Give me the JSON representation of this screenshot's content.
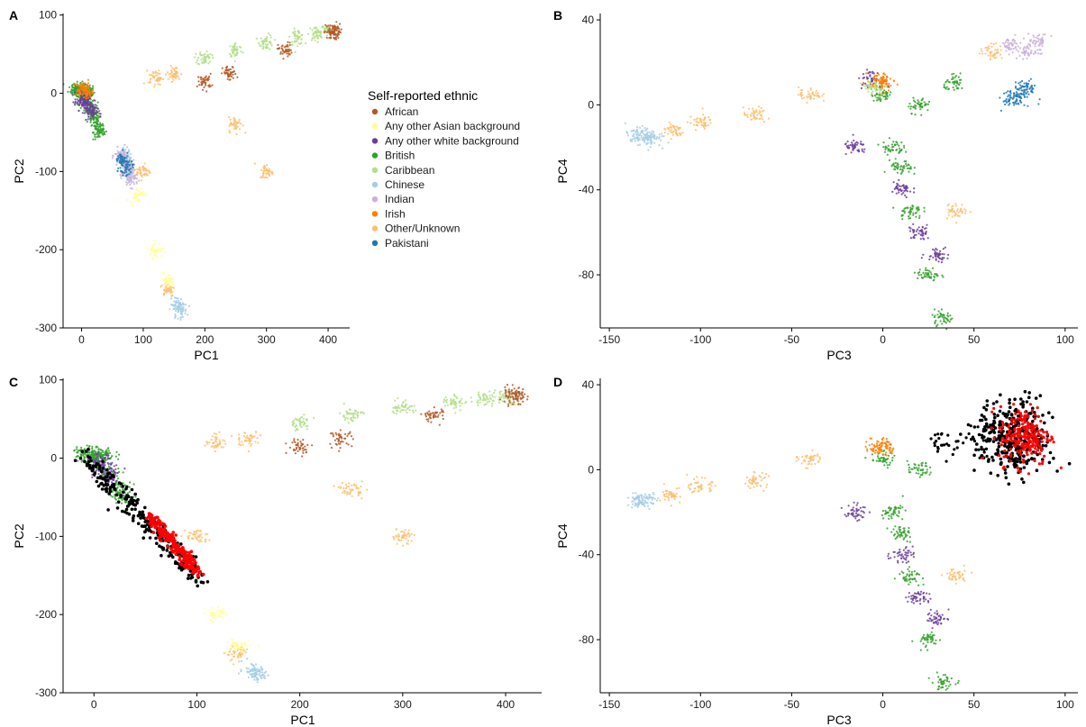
{
  "colors": {
    "African": "#b15928",
    "Any other Asian background": "#ffff99",
    "Any other white background": "#6a3d9a",
    "British": "#33a02c",
    "Caribbean": "#b2df8a",
    "Chinese": "#a6cee3",
    "Indian": "#cab2d6",
    "Irish": "#ff7f00",
    "Other/Unknown": "#fdbf6f",
    "Pakistani": "#1f78b4",
    "highlight_outer": "#000000",
    "highlight_inner": "#ff0000"
  },
  "legend": {
    "title": "Self-reported ethnic",
    "placement": "between panels A and B",
    "items": [
      {
        "label": "African",
        "key": "African"
      },
      {
        "label": "Any other Asian background",
        "key": "Any other Asian background"
      },
      {
        "label": "Any other white background",
        "key": "Any other white background"
      },
      {
        "label": "British",
        "key": "British"
      },
      {
        "label": "Caribbean",
        "key": "Caribbean"
      },
      {
        "label": "Chinese",
        "key": "Chinese"
      },
      {
        "label": "Indian",
        "key": "Indian"
      },
      {
        "label": "Irish",
        "key": "Irish"
      },
      {
        "label": "Other/Unknown",
        "key": "Other/Unknown"
      },
      {
        "label": "Pakistani",
        "key": "Pakistani"
      }
    ]
  },
  "chart_data": [
    {
      "panel": "A",
      "type": "scatter",
      "title": "",
      "xlabel": "PC1",
      "ylabel": "PC2",
      "xlim": [
        -30,
        435
      ],
      "ylim": [
        -300,
        102
      ],
      "xticks": [
        0,
        100,
        200,
        300,
        400
      ],
      "yticks": [
        100,
        0,
        -100,
        -200,
        -300
      ],
      "highlight": "none",
      "series": [
        {
          "name": "British",
          "points": [
            [
              -5,
              5
            ],
            [
              5,
              3
            ],
            [
              10,
              2
            ],
            [
              -10,
              6
            ],
            [
              3,
              0
            ],
            [
              15,
              -20
            ],
            [
              25,
              -40
            ],
            [
              30,
              -50
            ],
            [
              20,
              -30
            ],
            [
              8,
              -10
            ]
          ]
        },
        {
          "name": "Caribbean",
          "points": [
            [
              300,
              65
            ],
            [
              350,
              72
            ],
            [
              380,
              76
            ],
            [
              400,
              79
            ],
            [
              250,
              55
            ],
            [
              200,
              45
            ]
          ]
        },
        {
          "name": "African",
          "points": [
            [
              410,
              80
            ],
            [
              405,
              78
            ],
            [
              330,
              55
            ],
            [
              240,
              25
            ],
            [
              200,
              15
            ]
          ]
        },
        {
          "name": "Chinese",
          "points": [
            [
              160,
              -278
            ],
            [
              155,
              -270
            ],
            [
              80,
              -100
            ],
            [
              70,
              -80
            ]
          ]
        },
        {
          "name": "Indian",
          "points": [
            [
              70,
              -90
            ],
            [
              75,
              -100
            ],
            [
              80,
              -110
            ],
            [
              65,
              -80
            ]
          ]
        },
        {
          "name": "Pakistani",
          "points": [
            [
              65,
              -85
            ],
            [
              72,
              -95
            ]
          ]
        },
        {
          "name": "Any other white background",
          "points": [
            [
              5,
              -5
            ],
            [
              10,
              -15
            ],
            [
              15,
              -25
            ],
            [
              0,
              -10
            ]
          ]
        },
        {
          "name": "Other/Unknown",
          "points": [
            [
              150,
              25
            ],
            [
              120,
              20
            ],
            [
              100,
              -100
            ],
            [
              140,
              -250
            ],
            [
              250,
              -40
            ],
            [
              300,
              -100
            ]
          ]
        },
        {
          "name": "Any other Asian background",
          "points": [
            [
              120,
              -200
            ],
            [
              140,
              -240
            ],
            [
              90,
              -130
            ]
          ]
        },
        {
          "name": "Irish",
          "points": [
            [
              2,
              4
            ],
            [
              8,
              3
            ]
          ]
        }
      ]
    },
    {
      "panel": "B",
      "type": "scatter",
      "title": "",
      "xlabel": "PC3",
      "ylabel": "PC4",
      "xlim": [
        -155,
        107
      ],
      "ylim": [
        -105,
        43
      ],
      "xticks": [
        -150,
        -100,
        -50,
        0,
        50,
        100
      ],
      "yticks": [
        40,
        0,
        -40,
        -80
      ],
      "highlight": "none",
      "series": [
        {
          "name": "Chinese",
          "points": [
            [
              -135,
              -15
            ],
            [
              -130,
              -14
            ],
            [
              -128,
              -16
            ]
          ]
        },
        {
          "name": "Other/Unknown",
          "points": [
            [
              -115,
              -12
            ],
            [
              -100,
              -8
            ],
            [
              -70,
              -5
            ],
            [
              -40,
              5
            ],
            [
              60,
              25
            ],
            [
              40,
              -50
            ]
          ]
        },
        {
          "name": "British",
          "points": [
            [
              0,
              5
            ],
            [
              5,
              -20
            ],
            [
              15,
              -50
            ],
            [
              25,
              -80
            ],
            [
              33,
              -100
            ],
            [
              10,
              -30
            ],
            [
              20,
              0
            ],
            [
              40,
              10
            ]
          ]
        },
        {
          "name": "Any other white background",
          "points": [
            [
              -15,
              -20
            ],
            [
              10,
              -40
            ],
            [
              20,
              -60
            ],
            [
              30,
              -70
            ],
            [
              -7,
              12
            ]
          ]
        },
        {
          "name": "Indian",
          "points": [
            [
              80,
              25
            ],
            [
              85,
              30
            ],
            [
              70,
              28
            ]
          ]
        },
        {
          "name": "Pakistani",
          "points": [
            [
              75,
              5
            ],
            [
              78,
              8
            ],
            [
              72,
              2
            ]
          ]
        },
        {
          "name": "Irish",
          "points": [
            [
              -2,
              12
            ],
            [
              0,
              10
            ]
          ]
        },
        {
          "name": "Caribbean",
          "points": [
            [
              -5,
              8
            ]
          ]
        }
      ]
    },
    {
      "panel": "C",
      "type": "scatter",
      "title": "",
      "xlabel": "PC1",
      "ylabel": "PC2",
      "xlim": [
        -30,
        435
      ],
      "ylim": [
        -300,
        102
      ],
      "xticks": [
        0,
        100,
        200,
        300,
        400
      ],
      "yticks": [
        100,
        0,
        -100,
        -200,
        -300
      ],
      "highlight": "black outline, red fill along lower-left band",
      "series": [
        {
          "name": "British",
          "points": [
            [
              -5,
              5
            ],
            [
              5,
              3
            ],
            [
              10,
              2
            ],
            [
              -10,
              6
            ],
            [
              3,
              0
            ],
            [
              15,
              -20
            ],
            [
              25,
              -40
            ],
            [
              30,
              -50
            ]
          ]
        },
        {
          "name": "Caribbean",
          "points": [
            [
              300,
              65
            ],
            [
              350,
              72
            ],
            [
              380,
              76
            ],
            [
              400,
              79
            ],
            [
              250,
              55
            ],
            [
              200,
              45
            ]
          ]
        },
        {
          "name": "African",
          "points": [
            [
              410,
              80
            ],
            [
              405,
              78
            ],
            [
              330,
              55
            ],
            [
              240,
              25
            ],
            [
              200,
              15
            ]
          ]
        },
        {
          "name": "Chinese",
          "points": [
            [
              160,
              -278
            ],
            [
              155,
              -270
            ]
          ]
        },
        {
          "name": "Other/Unknown",
          "points": [
            [
              150,
              25
            ],
            [
              120,
              20
            ],
            [
              100,
              -100
            ],
            [
              140,
              -250
            ],
            [
              250,
              -40
            ],
            [
              300,
              -100
            ]
          ]
        },
        {
          "name": "Any other white background",
          "points": [
            [
              5,
              -5
            ],
            [
              10,
              -15
            ],
            [
              15,
              -25
            ]
          ]
        },
        {
          "name": "Any other Asian background",
          "points": [
            [
              120,
              -200
            ],
            [
              140,
              -240
            ]
          ]
        }
      ]
    },
    {
      "panel": "D",
      "type": "scatter",
      "title": "",
      "xlabel": "PC3",
      "ylabel": "PC4",
      "xlim": [
        -155,
        107
      ],
      "ylim": [
        -105,
        43
      ],
      "xticks": [
        -150,
        -100,
        -50,
        0,
        50,
        100
      ],
      "yticks": [
        40,
        0,
        -40,
        -80
      ],
      "highlight": "black outline, red fill at upper right",
      "series": [
        {
          "name": "Chinese",
          "points": [
            [
              -135,
              -15
            ],
            [
              -130,
              -14
            ]
          ]
        },
        {
          "name": "Other/Unknown",
          "points": [
            [
              -115,
              -12
            ],
            [
              -100,
              -8
            ],
            [
              -70,
              -5
            ],
            [
              -40,
              5
            ],
            [
              40,
              -50
            ]
          ]
        },
        {
          "name": "British",
          "points": [
            [
              0,
              5
            ],
            [
              5,
              -20
            ],
            [
              15,
              -50
            ],
            [
              25,
              -80
            ],
            [
              33,
              -100
            ],
            [
              10,
              -30
            ],
            [
              20,
              0
            ]
          ]
        },
        {
          "name": "Any other white background",
          "points": [
            [
              -15,
              -20
            ],
            [
              10,
              -40
            ],
            [
              20,
              -60
            ],
            [
              30,
              -70
            ]
          ]
        },
        {
          "name": "Irish",
          "points": [
            [
              -2,
              12
            ],
            [
              0,
              10
            ]
          ]
        }
      ]
    }
  ],
  "panels": [
    {
      "letter": "A",
      "xlabel": "PC1",
      "ylabel": "PC2",
      "xticks": [
        "0",
        "100",
        "200",
        "300",
        "400"
      ],
      "yticks": [
        "100",
        "0",
        "-100",
        "-200",
        "-300"
      ]
    },
    {
      "letter": "B",
      "xlabel": "PC3",
      "ylabel": "PC4",
      "xticks": [
        "-150",
        "-100",
        "-50",
        "0",
        "50",
        "100"
      ],
      "yticks": [
        "40",
        "0",
        "-40",
        "-80"
      ]
    },
    {
      "letter": "C",
      "xlabel": "PC1",
      "ylabel": "PC2",
      "xticks": [
        "0",
        "100",
        "200",
        "300",
        "400"
      ],
      "yticks": [
        "100",
        "0",
        "-100",
        "-200",
        "-300"
      ]
    },
    {
      "letter": "D",
      "xlabel": "PC3",
      "ylabel": "PC4",
      "xticks": [
        "-150",
        "-100",
        "-50",
        "0",
        "50",
        "100"
      ],
      "yticks": [
        "40",
        "0",
        "-40",
        "-80"
      ]
    }
  ]
}
